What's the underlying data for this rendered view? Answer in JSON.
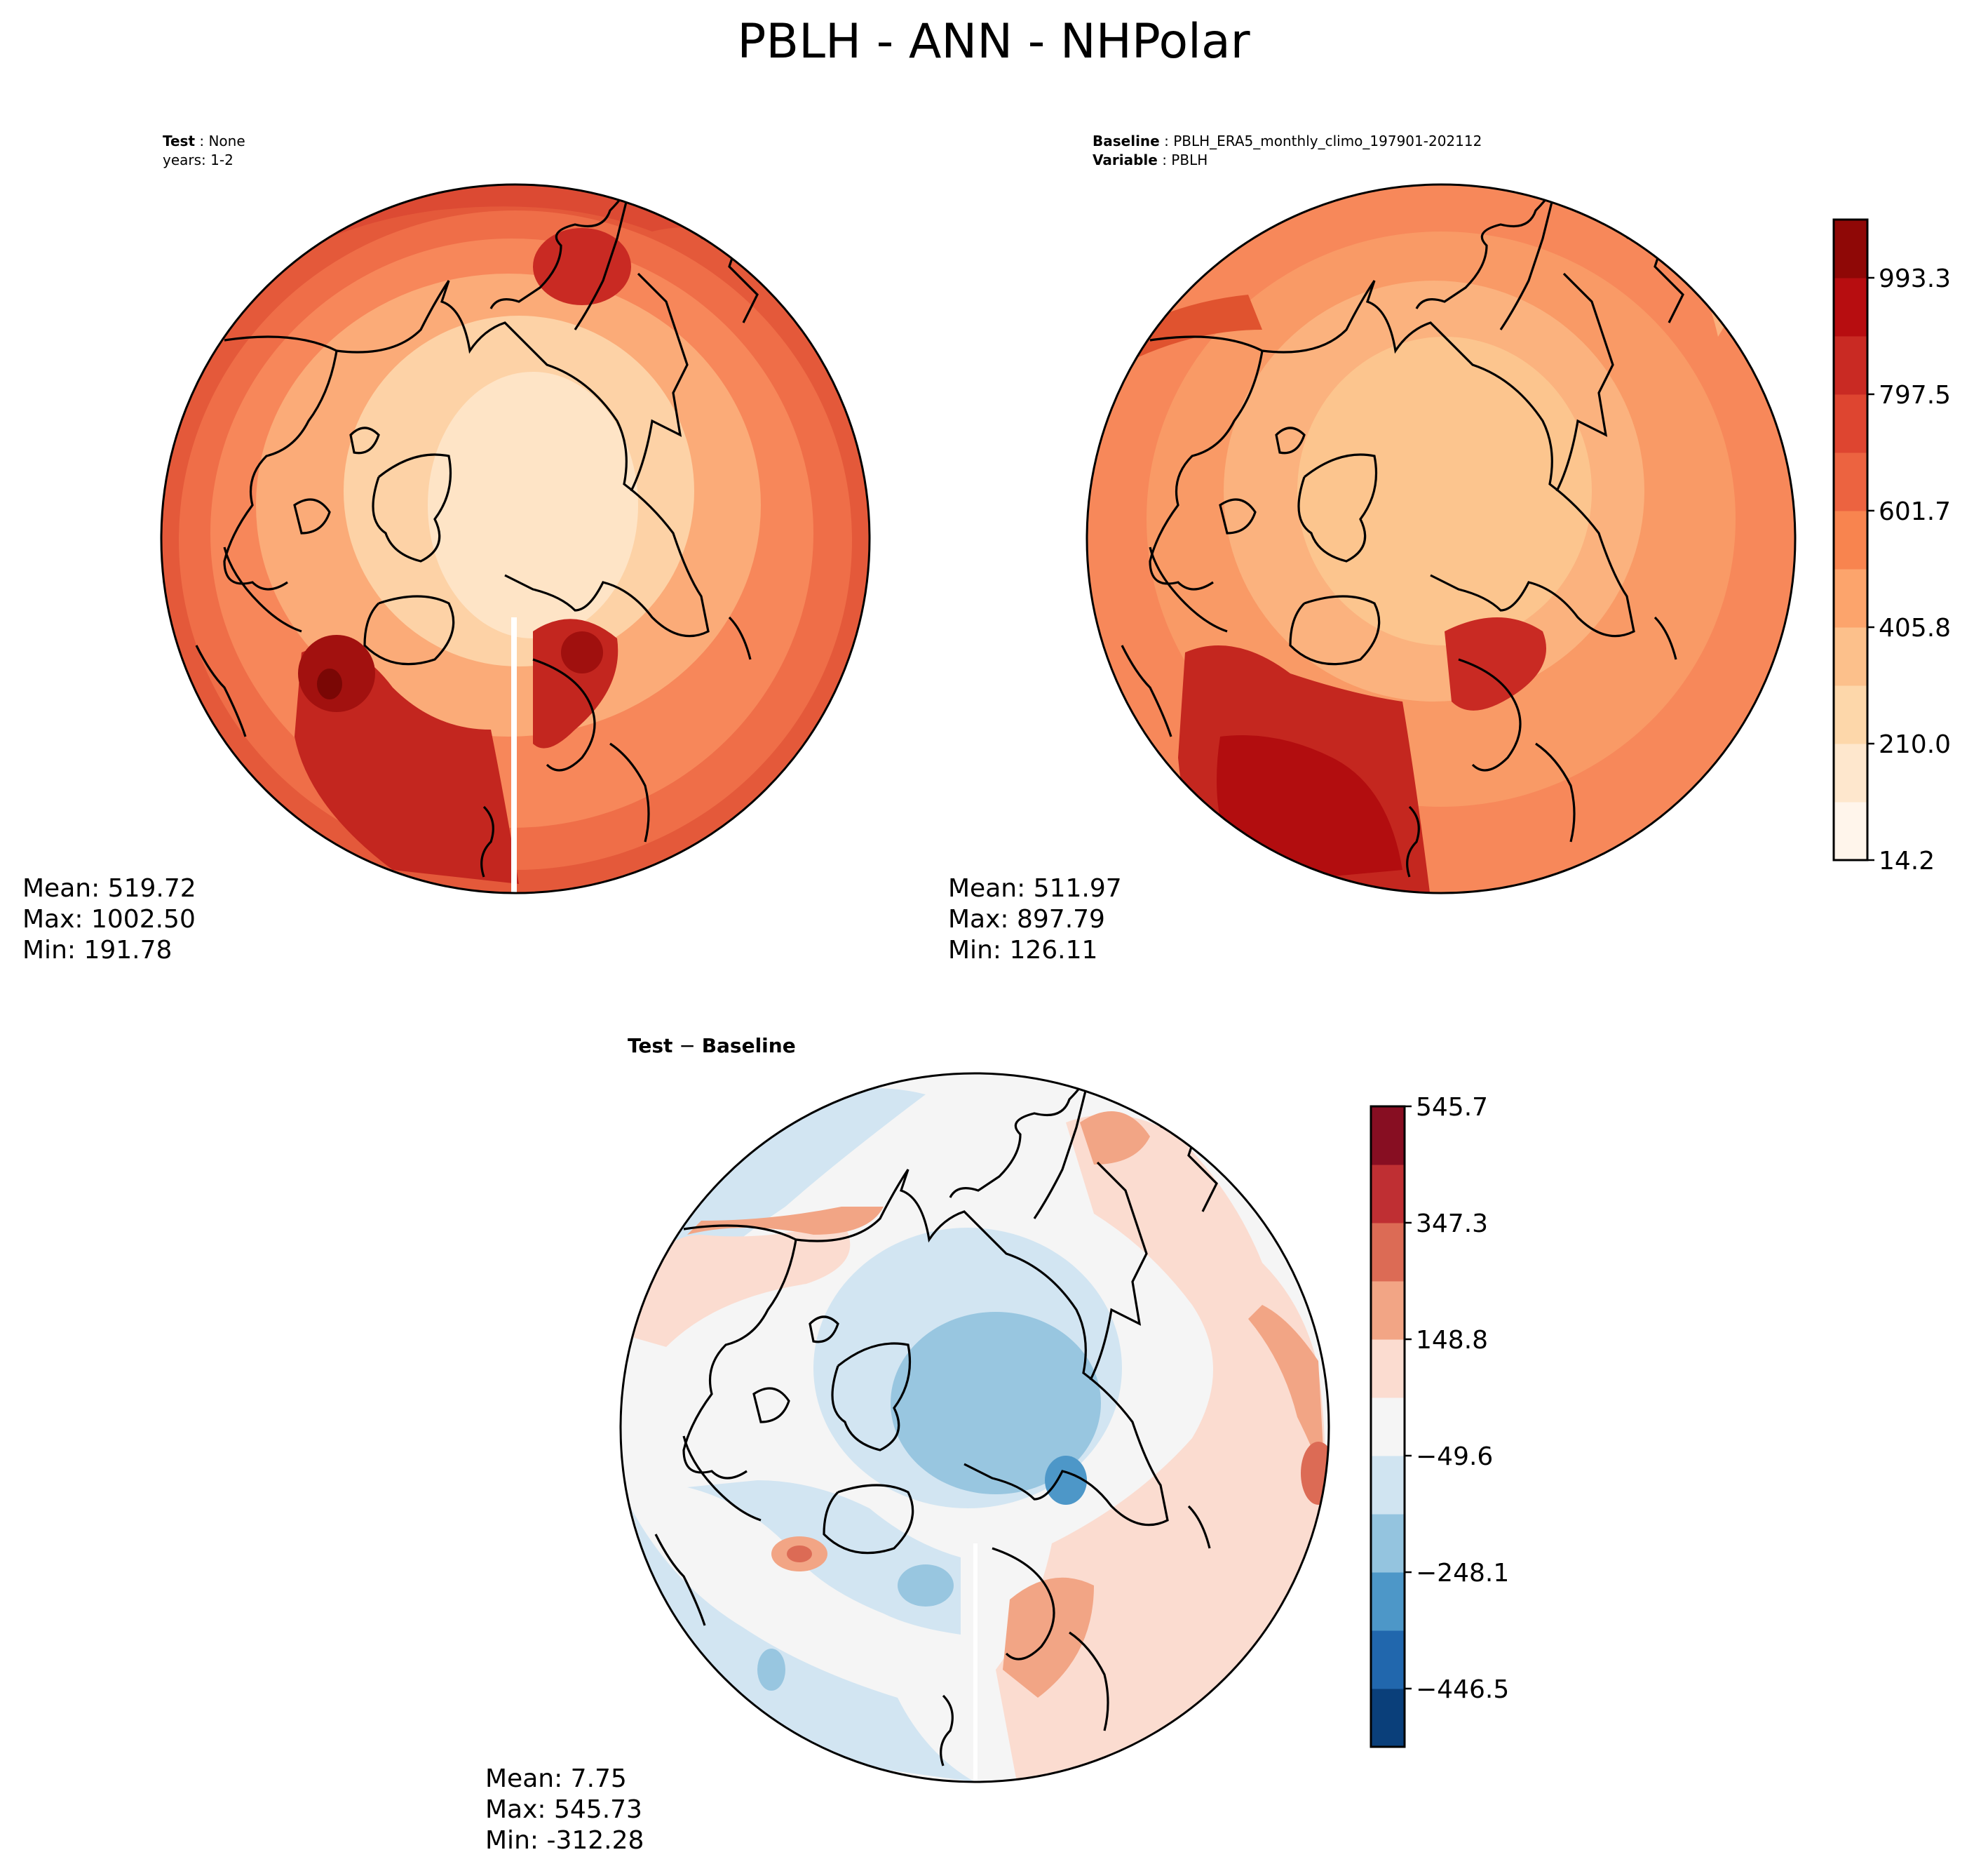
{
  "figure": {
    "title": "PBLH - ANN - NHPolar"
  },
  "panels": {
    "test": {
      "header": {
        "label_bold": "Test",
        "label_value": "None",
        "line2": "years: 1-2"
      },
      "stats": {
        "mean": "Mean: 519.72",
        "max": "Max: 1002.50",
        "min": "Min: 191.78"
      }
    },
    "baseline": {
      "header": {
        "label_bold": "Baseline",
        "label_value": "PBLH_ERA5_monthly_climo_197901-202112",
        "line2_bold": "Variable",
        "line2_value": "PBLH"
      },
      "stats": {
        "mean": "Mean: 511.97",
        "max": "Max: 897.79",
        "min": "Min: 126.11"
      }
    },
    "diff": {
      "header": {
        "label_bold": "Test",
        "label_sep": " − ",
        "label_bold2": "Baseline"
      },
      "stats": {
        "mean": "Mean:  7.75",
        "max": "Max: 545.73",
        "min": "Min: -312.28"
      }
    }
  },
  "colorbars": {
    "main": {
      "min": 14.2,
      "max": 1091.2,
      "tick_labels": [
        "14.2",
        "210.0",
        "405.8",
        "601.7",
        "797.5",
        "993.3"
      ],
      "tick_values": [
        14.2,
        210.0,
        405.8,
        601.7,
        797.5,
        993.3
      ],
      "colors": [
        "#fff5eb",
        "#fee7cd",
        "#fdd7aa",
        "#fcc08b",
        "#fca46c",
        "#f8844f",
        "#ec6340",
        "#de4530",
        "#c92a23",
        "#b70d10",
        "#8f0806"
      ]
    },
    "diff": {
      "min": -545.7,
      "max": 545.7,
      "tick_labels": [
        "545.7",
        "347.3",
        "148.8",
        "−49.6",
        "−248.1",
        "−446.5"
      ],
      "tick_values": [
        545.7,
        347.3,
        148.8,
        -49.6,
        -248.1,
        -446.5
      ],
      "colors": [
        "#0a3f7a",
        "#2167ad",
        "#4d97c8",
        "#94c4df",
        "#d0e4f1",
        "#f5f5f5",
        "#fbdcd0",
        "#f2a585",
        "#dc6b55",
        "#bf2f33",
        "#870e22"
      ]
    }
  },
  "map_colors": {
    "coast": "#000000",
    "fill_test": {
      "low": "#fde2c2",
      "mid": "#f9a16c",
      "high": "#dd4a32",
      "max": "#b70f10"
    },
    "fill_base": {
      "low": "#fcc58e",
      "mid": "#f8874f",
      "high": "#d23b28",
      "max": "#b70d10"
    },
    "fill_diff": {
      "neutral": "#f5f5f5",
      "neg": "#d2e5f2",
      "neg2": "#98c6e0",
      "pos": "#fbdcd0",
      "pos2": "#f2a585"
    }
  }
}
